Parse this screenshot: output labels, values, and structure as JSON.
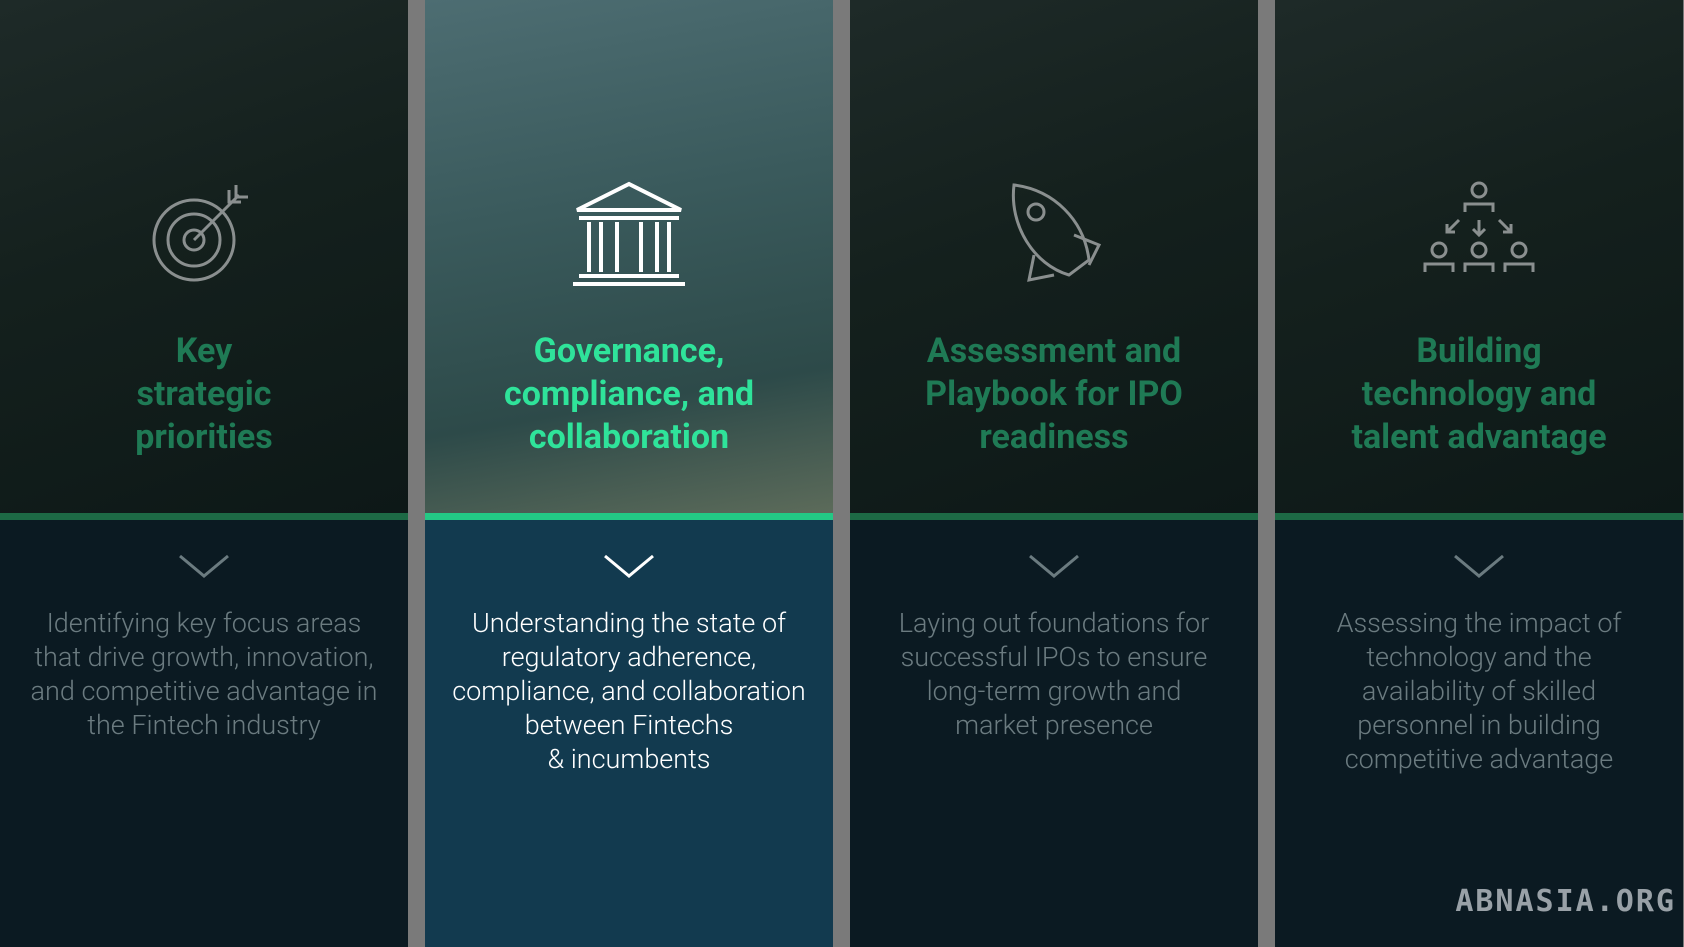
{
  "panels": [
    {
      "title": "Key\nstrategic\npriorities",
      "description": "Identifying key focus areas\nthat drive growth, innovation,\nand competitive advantage in\nthe Fintech industry",
      "active": false
    },
    {
      "title": "Governance,\ncompliance, and\ncollaboration",
      "description": "Understanding the state of\nregulatory adherence,\ncompliance, and collaboration\nbetween Fintechs\n& incumbents",
      "active": true
    },
    {
      "title": "Assessment and\nPlaybook for IPO\nreadiness",
      "description": "Laying out foundations for\nsuccessful IPOs to ensure\nlong-term growth and\nmarket presence",
      "active": false
    },
    {
      "title": "Building\ntechnology and\ntalent advantage",
      "description": "Assessing the impact of\ntechnology and the\navailability of skilled\npersonnel in building\ncompetitive advantage",
      "active": false
    }
  ],
  "watermark": "ABNASIA.ORG"
}
